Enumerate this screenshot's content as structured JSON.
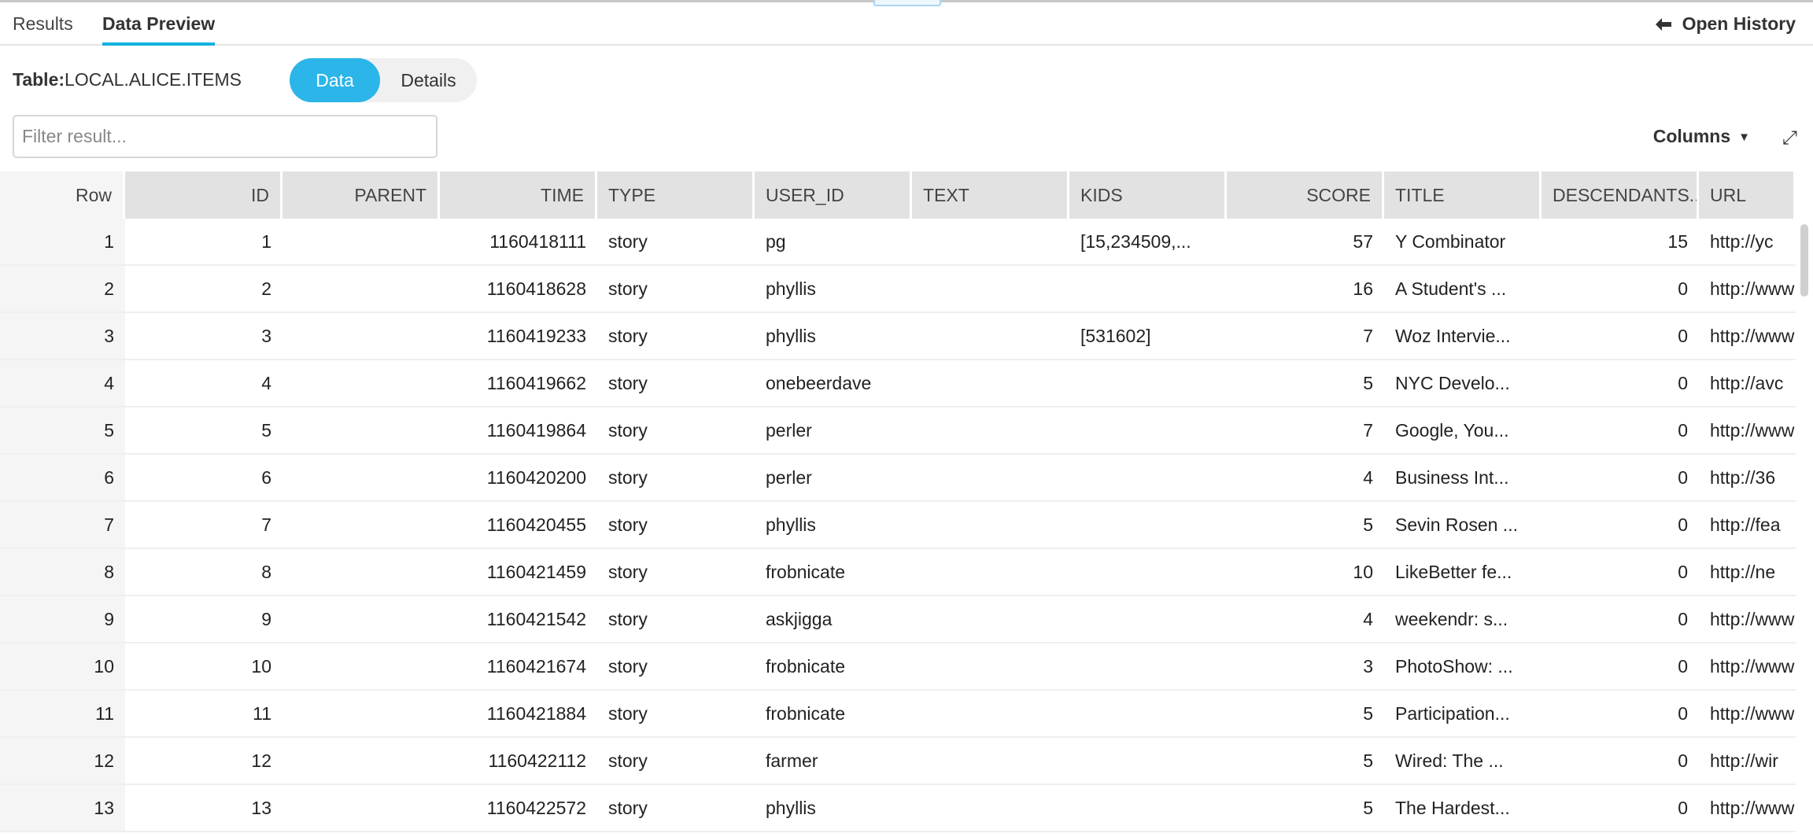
{
  "tabs": [
    {
      "label": "Results",
      "active": false
    },
    {
      "label": "Data Preview",
      "active": true
    }
  ],
  "open_history": {
    "label": "Open History",
    "icon": "arrow-left-icon"
  },
  "table_label": {
    "prefix": "Table:",
    "name": "LOCAL.ALICE.ITEMS"
  },
  "view_toggle": {
    "data": "Data",
    "details": "Details",
    "selected": "Data"
  },
  "filter": {
    "placeholder": "Filter result...",
    "value": ""
  },
  "columns_button": {
    "label": "Columns",
    "icon": "caret-down-icon"
  },
  "expand_icon": "expand-icon",
  "accent_color": "#2bb5e8",
  "table": {
    "headers": [
      "Row",
      "ID",
      "PARENT",
      "TIME",
      "TYPE",
      "USER_ID",
      "TEXT",
      "KIDS",
      "SCORE",
      "TITLE",
      "DESCENDANTS...",
      "URL"
    ],
    "rows": [
      [
        "1",
        "1",
        "",
        "1160418111",
        "story",
        "pg",
        "",
        "[15,234509,...",
        "57",
        "Y Combinator",
        "15",
        "http://yc"
      ],
      [
        "2",
        "2",
        "",
        "1160418628",
        "story",
        "phyllis",
        "",
        "",
        "16",
        "A Student's ...",
        "0",
        "http://www"
      ],
      [
        "3",
        "3",
        "",
        "1160419233",
        "story",
        "phyllis",
        "",
        "[531602]",
        "7",
        "Woz Intervie...",
        "0",
        "http://www"
      ],
      [
        "4",
        "4",
        "",
        "1160419662",
        "story",
        "onebeerdave",
        "",
        "",
        "5",
        "NYC Develo...",
        "0",
        "http://avc"
      ],
      [
        "5",
        "5",
        "",
        "1160419864",
        "story",
        "perler",
        "",
        "",
        "7",
        "Google, You...",
        "0",
        "http://www"
      ],
      [
        "6",
        "6",
        "",
        "1160420200",
        "story",
        "perler",
        "",
        "",
        "4",
        "Business Int...",
        "0",
        "http://36"
      ],
      [
        "7",
        "7",
        "",
        "1160420455",
        "story",
        "phyllis",
        "",
        "",
        "5",
        "Sevin Rosen ...",
        "0",
        "http://fea"
      ],
      [
        "8",
        "8",
        "",
        "1160421459",
        "story",
        "frobnicate",
        "",
        "",
        "10",
        "LikeBetter fe...",
        "0",
        "http://ne"
      ],
      [
        "9",
        "9",
        "",
        "1160421542",
        "story",
        "askjigga",
        "",
        "",
        "4",
        "weekendr: s...",
        "0",
        "http://www"
      ],
      [
        "10",
        "10",
        "",
        "1160421674",
        "story",
        "frobnicate",
        "",
        "",
        "3",
        "PhotoShow: ...",
        "0",
        "http://www"
      ],
      [
        "11",
        "11",
        "",
        "1160421884",
        "story",
        "frobnicate",
        "",
        "",
        "5",
        "Participation...",
        "0",
        "http://www"
      ],
      [
        "12",
        "12",
        "",
        "1160422112",
        "story",
        "farmer",
        "",
        "",
        "5",
        "Wired: The ...",
        "0",
        "http://wir"
      ],
      [
        "13",
        "13",
        "",
        "1160422572",
        "story",
        "phyllis",
        "",
        "",
        "5",
        "The Hardest...",
        "0",
        "http://www"
      ]
    ]
  }
}
